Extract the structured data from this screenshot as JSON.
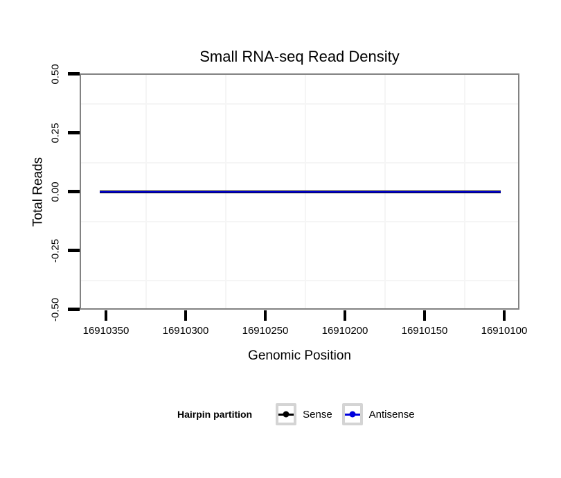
{
  "figure": {
    "title": "Small RNA-seq Read Density",
    "x_axis_title": "Genomic Position",
    "y_axis_title": "Total Reads"
  },
  "legend": {
    "title": "Hairpin partition",
    "items": [
      {
        "label": "Sense",
        "color": "#000000"
      },
      {
        "label": "Antisense",
        "color": "#0000dd"
      }
    ]
  },
  "chart_data": {
    "type": "line",
    "title": "Small RNA-seq Read Density",
    "xlabel": "Genomic Position",
    "ylabel": "Total Reads",
    "x_axis": {
      "ticks": [
        16910350,
        16910300,
        16910250,
        16910200,
        16910150,
        16910100
      ],
      "tick_labels": [
        "16910350",
        "16910300",
        "16910250",
        "16910200",
        "16910150",
        "16910100"
      ],
      "reversed": true,
      "range": [
        16910366,
        16910091
      ]
    },
    "y_axis": {
      "ticks": [
        0.5,
        0.25,
        0,
        -0.25,
        -0.5
      ],
      "tick_labels": [
        "0.50",
        "0.25",
        "0.00",
        "-0.25",
        "-0.50"
      ],
      "lim": [
        -0.5,
        0.5
      ]
    },
    "series": [
      {
        "name": "Sense",
        "color": "#000000",
        "x": [
          16910354,
          16910102
        ],
        "y": [
          0,
          0
        ]
      },
      {
        "name": "Antisense",
        "color": "#0000dd",
        "x": [
          16910354,
          16910102
        ],
        "y": [
          0,
          0
        ]
      }
    ],
    "legend_title": "Hairpin partition",
    "legend_position": "bottom",
    "grid": "minor gridlines only, very light gray (#f5f5f5), no major gridlines",
    "background": "#ffffff",
    "panel_border": "#828282"
  }
}
